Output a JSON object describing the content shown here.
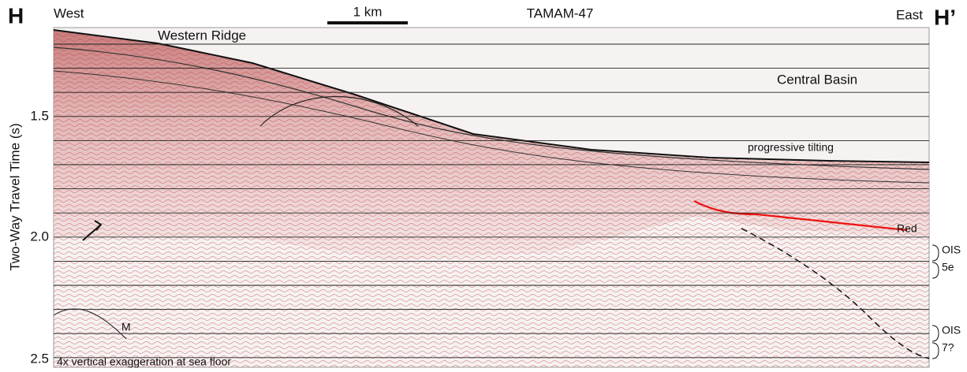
{
  "figure": {
    "panel_left": "H",
    "panel_right": "H’",
    "west": "West",
    "east": "East",
    "scale_bar": "1 km",
    "profile": "TAMAM-47",
    "y_axis_label": "Two-Way Travel Time (s)",
    "y_ticks": [
      "1.5",
      "2.0",
      "2.5"
    ],
    "annotations": {
      "western_ridge": "Western Ridge",
      "central_basin": "Central Basin",
      "tilting": "progressive tilting",
      "red": "Red",
      "m": "M",
      "exaggeration": "4x vertical exaggeration at sea floor"
    },
    "stages": [
      {
        "top": "OIS",
        "bottom": "5e"
      },
      {
        "top": "OIS",
        "bottom": "7?"
      }
    ]
  }
}
